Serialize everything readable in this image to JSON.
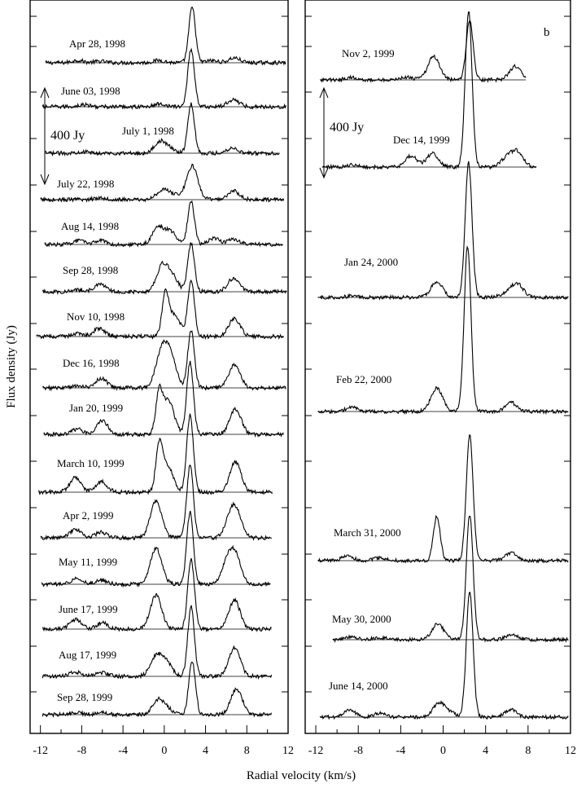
{
  "figure": {
    "xlabel": "Radial velocity (km/s)",
    "ylabel": "Flux density (Jy)",
    "scale_label": "400 Jy",
    "panel_b_label": "b"
  },
  "chart_data": [
    {
      "type": "line",
      "panel": "a",
      "x_ticks": [
        -12,
        -8,
        -4,
        0,
        4,
        8,
        12
      ],
      "xlim": [
        -13,
        12
      ],
      "scale_bar_jy": 400,
      "series": [
        {
          "name": "Apr 28, 1998",
          "peaks": [
            [
              -8.4,
              10
            ],
            [
              -6.2,
              6
            ],
            [
              -0.5,
              10
            ],
            [
              2.7,
              230
            ],
            [
              4.6,
              9
            ],
            [
              6.8,
              20
            ]
          ]
        },
        {
          "name": "June 03, 1998",
          "peaks": [
            [
              -7.8,
              8
            ],
            [
              -0.4,
              12
            ],
            [
              2.6,
              240
            ],
            [
              6.7,
              30
            ]
          ]
        },
        {
          "name": "July 1, 1998",
          "peaks": [
            [
              -8.0,
              6
            ],
            [
              -0.4,
              48
            ],
            [
              0.6,
              16
            ],
            [
              2.6,
              205
            ],
            [
              6.6,
              22
            ]
          ]
        },
        {
          "name": "July 22, 1998",
          "peaks": [
            [
              -6.2,
              8
            ],
            [
              -0.2,
              40
            ],
            [
              0.9,
              20
            ],
            [
              2.7,
              140
            ],
            [
              6.7,
              36
            ]
          ]
        },
        {
          "name": "Aug 14, 1998",
          "peaks": [
            [
              -8.3,
              16
            ],
            [
              -6.2,
              16
            ],
            [
              -0.6,
              70
            ],
            [
              0.6,
              52
            ],
            [
              2.6,
              180
            ],
            [
              4.8,
              26
            ],
            [
              6.7,
              22
            ]
          ]
        },
        {
          "name": "Sep 28, 1998",
          "peaks": [
            [
              -8.2,
              8
            ],
            [
              -6.2,
              30
            ],
            [
              -0.2,
              106
            ],
            [
              0.8,
              60
            ],
            [
              2.6,
              200
            ],
            [
              6.7,
              56
            ]
          ]
        },
        {
          "name": "Nov 10, 1998",
          "peaks": [
            [
              -8.4,
              14
            ],
            [
              -6.3,
              34
            ],
            [
              0.1,
              168
            ],
            [
              1.0,
              90
            ],
            [
              2.6,
              230
            ],
            [
              6.8,
              76
            ]
          ]
        },
        {
          "name": "Dec 16, 1998",
          "peaks": [
            [
              -8.4,
              10
            ],
            [
              -6.1,
              40
            ],
            [
              -0.3,
              140
            ],
            [
              0.6,
              130
            ],
            [
              2.6,
              240
            ],
            [
              6.8,
              96
            ]
          ]
        },
        {
          "name": "Jan 20, 1999",
          "peaks": [
            [
              -8.4,
              22
            ],
            [
              -6.0,
              56
            ],
            [
              -0.5,
              160
            ],
            [
              0.4,
              140
            ],
            [
              2.5,
              300
            ],
            [
              6.9,
              106
            ]
          ]
        },
        {
          "name": "March 10, 1999",
          "peaks": [
            [
              -8.6,
              60
            ],
            [
              -6.1,
              44
            ],
            [
              -0.5,
              176
            ],
            [
              0.3,
              110
            ],
            [
              2.5,
              320
            ],
            [
              6.9,
              126
            ]
          ]
        },
        {
          "name": "Apr 2, 1999",
          "peaks": [
            [
              -8.6,
              36
            ],
            [
              -6.1,
              24
            ],
            [
              -0.8,
              150
            ],
            [
              2.5,
              300
            ],
            [
              6.4,
              70
            ],
            [
              7.0,
              90
            ]
          ]
        },
        {
          "name": "May 11, 1999",
          "peaks": [
            [
              -8.4,
              26
            ],
            [
              -6.1,
              18
            ],
            [
              -0.8,
              150
            ],
            [
              2.5,
              300
            ],
            [
              6.1,
              86
            ],
            [
              6.9,
              110
            ]
          ]
        },
        {
          "name": "June 17, 1999",
          "peaks": [
            [
              -8.6,
              40
            ],
            [
              -6.0,
              26
            ],
            [
              -0.8,
              140
            ],
            [
              2.6,
              290
            ],
            [
              6.8,
              120
            ]
          ]
        },
        {
          "name": "Aug 17, 1999",
          "peaks": [
            [
              -8.6,
              18
            ],
            [
              -6.0,
              14
            ],
            [
              -0.8,
              80
            ],
            [
              0.2,
              56
            ],
            [
              2.6,
              290
            ],
            [
              6.8,
              120
            ]
          ]
        },
        {
          "name": "Sep 28, 1999",
          "peaks": [
            [
              -8.6,
              10
            ],
            [
              -6.1,
              8
            ],
            [
              -0.6,
              60
            ],
            [
              0.3,
              20
            ],
            [
              2.7,
              220
            ],
            [
              7.0,
              106
            ]
          ]
        }
      ]
    },
    {
      "type": "line",
      "panel": "b",
      "x_ticks": [
        -12,
        -8,
        -4,
        0,
        4,
        8,
        12
      ],
      "xlim": [
        -13,
        12
      ],
      "scale_bar_jy": 400,
      "series": [
        {
          "name": "Nov 2, 1999",
          "peaks": [
            [
              -8.6,
              12
            ],
            [
              -3.4,
              12
            ],
            [
              -0.9,
              104
            ],
            [
              2.5,
              266
            ],
            [
              6.8,
              60
            ]
          ]
        },
        {
          "name": "Dec 14, 1999",
          "peaks": [
            [
              -8.5,
              10
            ],
            [
              -3.0,
              50
            ],
            [
              -1.0,
              60
            ],
            [
              2.4,
              700
            ],
            [
              6.0,
              40
            ],
            [
              7.0,
              66
            ]
          ]
        },
        {
          "name": "Jan 24, 2000",
          "peaks": [
            [
              -8.5,
              8
            ],
            [
              -0.6,
              70
            ],
            [
              2.4,
              600
            ],
            [
              6.0,
              20
            ],
            [
              7.0,
              60
            ]
          ]
        },
        {
          "name": "Feb 22, 2000",
          "peaks": [
            [
              -8.6,
              20
            ],
            [
              -0.6,
              104
            ],
            [
              2.3,
              740
            ],
            [
              6.4,
              40
            ]
          ]
        },
        {
          "name": "March 31, 2000",
          "peaks": [
            [
              -9.0,
              20
            ],
            [
              -6.0,
              12
            ],
            [
              -0.6,
              200
            ],
            [
              2.5,
              560
            ],
            [
              6.4,
              34
            ]
          ]
        },
        {
          "name": "May 30, 2000",
          "peaks": [
            [
              -8.6,
              14
            ],
            [
              -6.0,
              10
            ],
            [
              -0.5,
              70
            ],
            [
              2.5,
              560
            ],
            [
              6.5,
              24
            ]
          ]
        },
        {
          "name": "June 14, 2000",
          "peaks": [
            [
              -8.8,
              30
            ],
            [
              -6.0,
              16
            ],
            [
              -0.4,
              60
            ],
            [
              0.6,
              20
            ],
            [
              2.5,
              560
            ],
            [
              6.4,
              32
            ]
          ]
        }
      ]
    }
  ]
}
